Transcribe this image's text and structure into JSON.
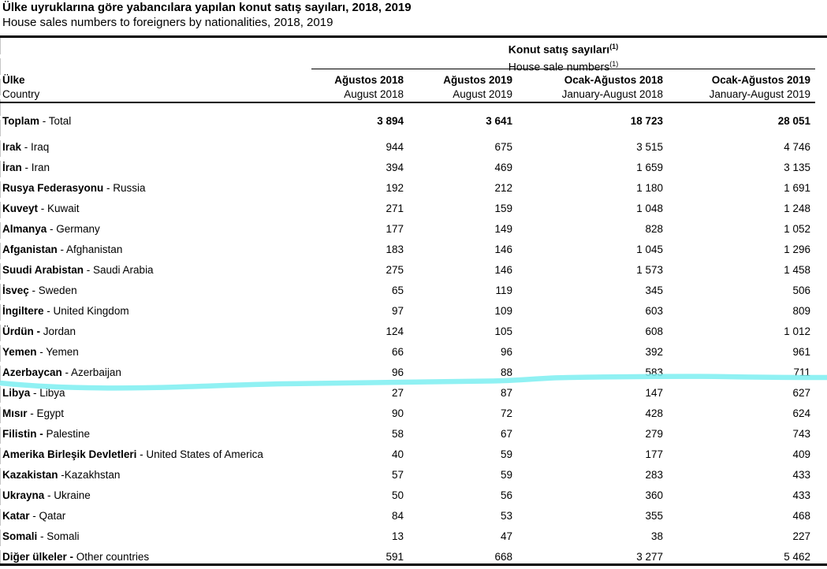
{
  "title": "Ülke uyruklarına göre yabancılara yapılan konut satış sayıları, 2018, 2019",
  "subtitle": "House sales numbers to foreigners by nationalities, 2018, 2019",
  "table": {
    "group_header": {
      "tr": "Konut satış sayıları",
      "en": "House sale numbers",
      "footnote_marker": "(1)"
    },
    "country_header": {
      "tr": "Ülke",
      "en": "Country"
    },
    "columns": [
      {
        "tr": "Ağustos 2018",
        "en": "August 2018"
      },
      {
        "tr": "Ağustos 2019",
        "en": "August 2019"
      },
      {
        "tr": "Ocak-Ağustos 2018",
        "en": "January-August 2018"
      },
      {
        "tr": "Ocak-Ağustos 2019",
        "en": "January-August 2019"
      }
    ],
    "rows": [
      {
        "tr": "Toplam",
        "sep": " - ",
        "en": "Total",
        "values": [
          "3 894",
          "3 641",
          "18 723",
          "28 051"
        ],
        "total": true
      },
      {
        "tr": "Irak",
        "sep": " - ",
        "en": "Iraq",
        "values": [
          "944",
          "675",
          "3 515",
          "4 746"
        ]
      },
      {
        "tr": "İran",
        "sep": " - ",
        "en": "Iran",
        "values": [
          "394",
          "469",
          "1 659",
          "3 135"
        ]
      },
      {
        "tr": "Rusya Federasyonu",
        "sep": " - ",
        "en": "Russia",
        "values": [
          "192",
          "212",
          "1 180",
          "1 691"
        ]
      },
      {
        "tr": "Kuveyt",
        "sep": " - ",
        "en": "Kuwait",
        "values": [
          "271",
          "159",
          "1 048",
          "1 248"
        ]
      },
      {
        "tr": "Almanya",
        "sep": " - ",
        "en": "Germany",
        "values": [
          "177",
          "149",
          "828",
          "1 052"
        ]
      },
      {
        "tr": "Afganistan",
        "sep": " - ",
        "en": "Afghanistan",
        "values": [
          "183",
          "146",
          "1 045",
          "1 296"
        ]
      },
      {
        "tr": "Suudi Arabistan",
        "sep": " - ",
        "en": "Saudi Arabia",
        "values": [
          "275",
          "146",
          "1 573",
          "1 458"
        ]
      },
      {
        "tr": "İsveç",
        "sep": " - ",
        "en": "Sweden",
        "values": [
          "65",
          "119",
          "345",
          "506"
        ]
      },
      {
        "tr": "İngiltere",
        "sep": " - ",
        "en": "United Kingdom",
        "values": [
          "97",
          "109",
          "603",
          "809"
        ]
      },
      {
        "tr": "Ürdün -",
        "sep": " ",
        "en": "Jordan",
        "values": [
          "124",
          "105",
          "608",
          "1 012"
        ]
      },
      {
        "tr": "Yemen",
        "sep": " - ",
        "en": "Yemen",
        "values": [
          "66",
          "96",
          "392",
          "961"
        ]
      },
      {
        "tr": "Azerbaycan",
        "sep": " - ",
        "en": "Azerbaijan",
        "values": [
          "96",
          "88",
          "583",
          "711"
        ]
      },
      {
        "tr": "Libya",
        "sep": " - ",
        "en": "Libya",
        "values": [
          "27",
          "87",
          "147",
          "627"
        ]
      },
      {
        "tr": "Mısır",
        "sep": " - ",
        "en": "Egypt",
        "values": [
          "90",
          "72",
          "428",
          "624"
        ]
      },
      {
        "tr": "Filistin -",
        "sep": " ",
        "en": "Palestine",
        "values": [
          "58",
          "67",
          "279",
          "743"
        ]
      },
      {
        "tr": "Amerika Birleşik Devletleri",
        "sep": " - ",
        "en": "United States of America",
        "values": [
          "40",
          "59",
          "177",
          "409"
        ]
      },
      {
        "tr": "Kazakistan",
        "sep": " -",
        "en": "Kazakhstan",
        "values": [
          "57",
          "59",
          "283",
          "433"
        ]
      },
      {
        "tr": "Ukrayna",
        "sep": " - ",
        "en": "Ukraine",
        "values": [
          "50",
          "56",
          "360",
          "433"
        ]
      },
      {
        "tr": "Katar",
        "sep": " - ",
        "en": "Qatar",
        "values": [
          "84",
          "53",
          "355",
          "468"
        ]
      },
      {
        "tr": "Somali",
        "sep": " - ",
        "en": "Somali",
        "values": [
          "13",
          "47",
          "38",
          "227"
        ]
      },
      {
        "tr": "Diğer ülkeler -",
        "sep": " ",
        "en": "Other countries",
        "values": [
          "591",
          "668",
          "3 277",
          "5 462"
        ]
      }
    ]
  },
  "highlight": {
    "color": "#7ceef1"
  }
}
